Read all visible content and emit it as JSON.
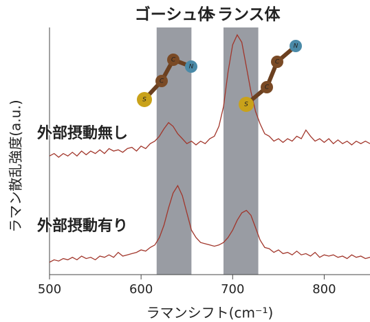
{
  "chart_data": {
    "type": "line",
    "bands": [
      {
        "label": "ゴーシュ体",
        "range": [
          617,
          655
        ]
      },
      {
        "label": "トランス体",
        "range": [
          690,
          728
        ]
      }
    ],
    "band_color": "#8e9199",
    "xlabel": "ラマンシフト(cm⁻¹)",
    "ylabel": "ラマン散乱強度(a.u.)",
    "xlim": [
      500,
      850
    ],
    "xticks": [
      500,
      600,
      700,
      800
    ],
    "ylim": [
      0,
      100
    ],
    "molecules": [
      {
        "atoms": [
          "S",
          "C",
          "C",
          "N"
        ]
      },
      {
        "atoms": [
          "S",
          "C",
          "C",
          "N"
        ]
      }
    ],
    "x": [
      500,
      505,
      510,
      515,
      520,
      525,
      530,
      535,
      540,
      545,
      550,
      555,
      560,
      565,
      570,
      575,
      580,
      585,
      590,
      595,
      600,
      605,
      610,
      615,
      620,
      625,
      630,
      635,
      640,
      645,
      650,
      655,
      660,
      665,
      670,
      675,
      680,
      685,
      690,
      695,
      700,
      705,
      710,
      715,
      720,
      725,
      730,
      735,
      740,
      745,
      750,
      755,
      760,
      765,
      770,
      775,
      780,
      785,
      790,
      795,
      800,
      805,
      810,
      815,
      820,
      825,
      830,
      835,
      840,
      845,
      850
    ],
    "series": [
      {
        "name": "外部摂動無し",
        "color": "#a1352a",
        "values": [
          48,
          49,
          47.5,
          49,
          48,
          49.5,
          48,
          50,
          48.5,
          50,
          49,
          50.5,
          49,
          51,
          50,
          50.5,
          49.5,
          51,
          51.5,
          50,
          52,
          51,
          53,
          54,
          56,
          59,
          61.5,
          60,
          57,
          55,
          53,
          54,
          52.5,
          54,
          53,
          55,
          56,
          60,
          68,
          82,
          93,
          97,
          94,
          84,
          74,
          66,
          61,
          57,
          56,
          54,
          55,
          53.5,
          55,
          54,
          56,
          55,
          58.5,
          56,
          54,
          55,
          53.5,
          55,
          53,
          54.5,
          53,
          54,
          52.5,
          54,
          53,
          54,
          53
        ]
      },
      {
        "name": "外部摂動有り",
        "color": "#a1352a",
        "values": [
          5,
          6,
          5.5,
          6.5,
          6,
          7,
          6,
          7.5,
          6.5,
          7,
          6,
          7.5,
          7,
          8,
          7,
          9,
          7.5,
          8,
          8.5,
          9,
          10,
          9.5,
          11,
          12,
          15,
          20,
          27,
          33,
          36,
          32,
          25,
          18,
          15,
          13,
          12.5,
          12,
          11.5,
          12,
          13,
          15,
          18,
          22,
          25,
          26,
          24,
          19,
          14,
          11,
          10.5,
          9,
          10,
          8.5,
          9,
          8,
          9.5,
          8,
          8.5,
          7.5,
          9,
          7,
          8,
          7.5,
          8,
          7,
          7.5,
          6.5,
          8,
          7,
          7.5,
          6.5,
          7
        ]
      }
    ]
  }
}
